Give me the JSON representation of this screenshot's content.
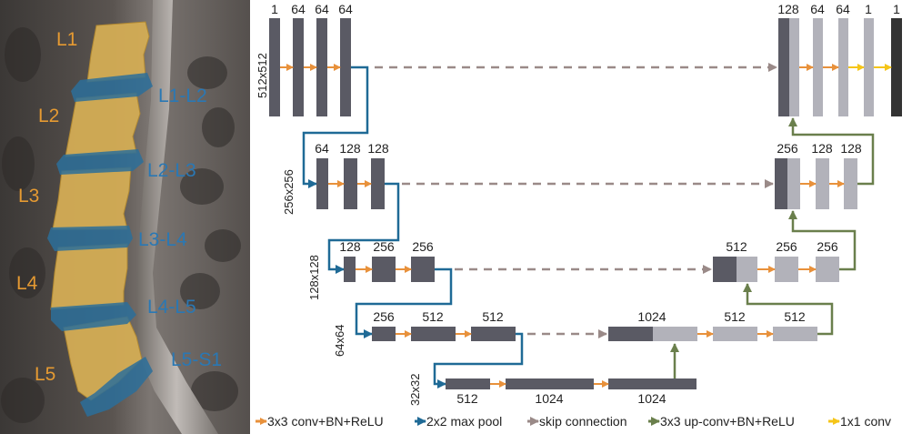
{
  "vertebra_labels": [
    "L1",
    "L2",
    "L3",
    "L4",
    "L5"
  ],
  "disc_labels": [
    "L1-L2",
    "L2-L3",
    "L3-L4",
    "L4-L5",
    "L5-S1"
  ],
  "resolution_labels": [
    "512x512",
    "256x256",
    "128x128",
    "64x64",
    "32x32"
  ],
  "channels": {
    "enc1": [
      "1",
      "64",
      "64",
      "64"
    ],
    "enc2": [
      "64",
      "128",
      "128"
    ],
    "enc3": [
      "128",
      "256",
      "256"
    ],
    "enc4": [
      "256",
      "512",
      "512"
    ],
    "bottleneck": [
      "512",
      "1024",
      "1024"
    ],
    "dec4": [
      "1024",
      "512",
      "512"
    ],
    "dec3": [
      "512",
      "256",
      "256"
    ],
    "dec2": [
      "256",
      "128",
      "128"
    ],
    "dec1": [
      "128",
      "64",
      "64",
      "1",
      "1"
    ]
  },
  "legend": {
    "conv": "3x3 conv+BN+ReLU",
    "pool": "2x2 max pool",
    "skip": "skip connection",
    "upconv": "3x3 up-conv+BN+ReLU",
    "conv1x1": "1x1 conv"
  },
  "colors": {
    "orange": "#e8913b",
    "blue": "#1f6a96",
    "gray_arrow": "#9a8a88",
    "green": "#6a7f4c",
    "yellow": "#f5c518",
    "dark_bar": "#5a5a64",
    "light_bar": "#b2b2ba",
    "black_bar": "#333333"
  }
}
